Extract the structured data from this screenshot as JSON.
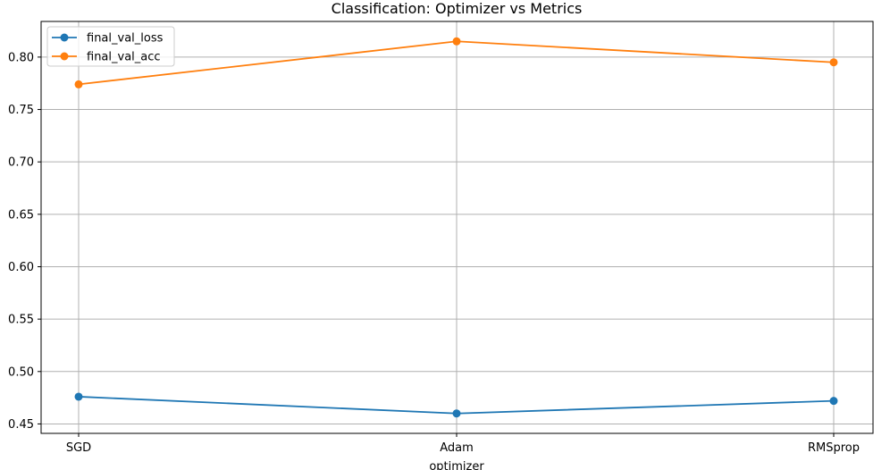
{
  "chart_data": {
    "type": "line",
    "title": "Classification: Optimizer vs Metrics",
    "xlabel": "optimizer",
    "ylabel": "",
    "categories": [
      "SGD",
      "Adam",
      "RMSprop"
    ],
    "series": [
      {
        "name": "final_val_loss",
        "color": "#1f77b4",
        "values": [
          0.476,
          0.46,
          0.472
        ]
      },
      {
        "name": "final_val_acc",
        "color": "#ff7f0e",
        "values": [
          0.774,
          0.815,
          0.795
        ]
      }
    ],
    "ylim": [
      0.441,
      0.834
    ],
    "yticks": [
      "0.45",
      "0.50",
      "0.55",
      "0.60",
      "0.65",
      "0.70",
      "0.75",
      "0.80"
    ],
    "grid": true,
    "legend": "upper-left",
    "marker": "circle"
  }
}
